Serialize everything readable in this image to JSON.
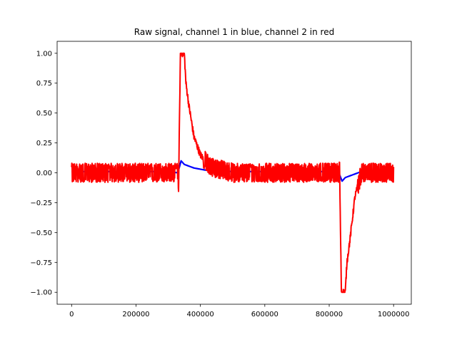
{
  "chart_data": {
    "type": "line",
    "title": "Raw signal, channel 1 in blue, channel 2 in red",
    "xlabel": "",
    "ylabel": "",
    "xlim": [
      -45000,
      1055000
    ],
    "ylim": [
      -1.1,
      1.1
    ],
    "grid": false,
    "legend": "none",
    "x_ticks": [
      {
        "value": 0,
        "label": "0"
      },
      {
        "value": 200000,
        "label": "200000"
      },
      {
        "value": 400000,
        "label": "400000"
      },
      {
        "value": 600000,
        "label": "600000"
      },
      {
        "value": 800000,
        "label": "800000"
      },
      {
        "value": 1000000,
        "label": "1000000"
      }
    ],
    "y_ticks": [
      {
        "value": 1.0,
        "label": "1.00"
      },
      {
        "value": 0.75,
        "label": "0.75"
      },
      {
        "value": 0.5,
        "label": "0.50"
      },
      {
        "value": 0.25,
        "label": "0.25"
      },
      {
        "value": 0.0,
        "label": "0.00"
      },
      {
        "value": -0.25,
        "label": "−0.25"
      },
      {
        "value": -0.5,
        "label": "−0.50"
      },
      {
        "value": -0.75,
        "label": "−0.75"
      },
      {
        "value": -1.0,
        "label": "−1.00"
      }
    ],
    "series": [
      {
        "color": "#0000ff",
        "x": [
          0,
          100000,
          200000,
          300000,
          330000,
          340000,
          350000,
          380000,
          420000,
          500000,
          600000,
          700000,
          800000,
          830000,
          840000,
          850000,
          870000,
          900000,
          1000000
        ],
        "y": [
          0.01,
          0.01,
          0.01,
          0.01,
          0.0,
          0.1,
          0.07,
          0.04,
          0.02,
          0.01,
          0.01,
          0.01,
          0.01,
          0.0,
          -0.07,
          -0.04,
          -0.02,
          0.01,
          0.01
        ]
      },
      {
        "color": "#ff0000",
        "noisy_band": [
          -0.08,
          0.08
        ],
        "x": [
          0,
          330000,
          332000,
          338000,
          345000,
          350000,
          355000,
          365000,
          380000,
          400000,
          430000,
          500000,
          700000,
          830000,
          832000,
          838000,
          850000,
          855000,
          865000,
          880000,
          900000,
          1000000
        ],
        "y": [
          0.0,
          0.0,
          -0.12,
          1.0,
          1.0,
          1.0,
          0.75,
          0.55,
          0.3,
          0.15,
          0.05,
          0.0,
          0.0,
          0.0,
          0.05,
          -1.0,
          -1.0,
          -0.75,
          -0.55,
          -0.2,
          0.0,
          0.0
        ]
      }
    ]
  }
}
